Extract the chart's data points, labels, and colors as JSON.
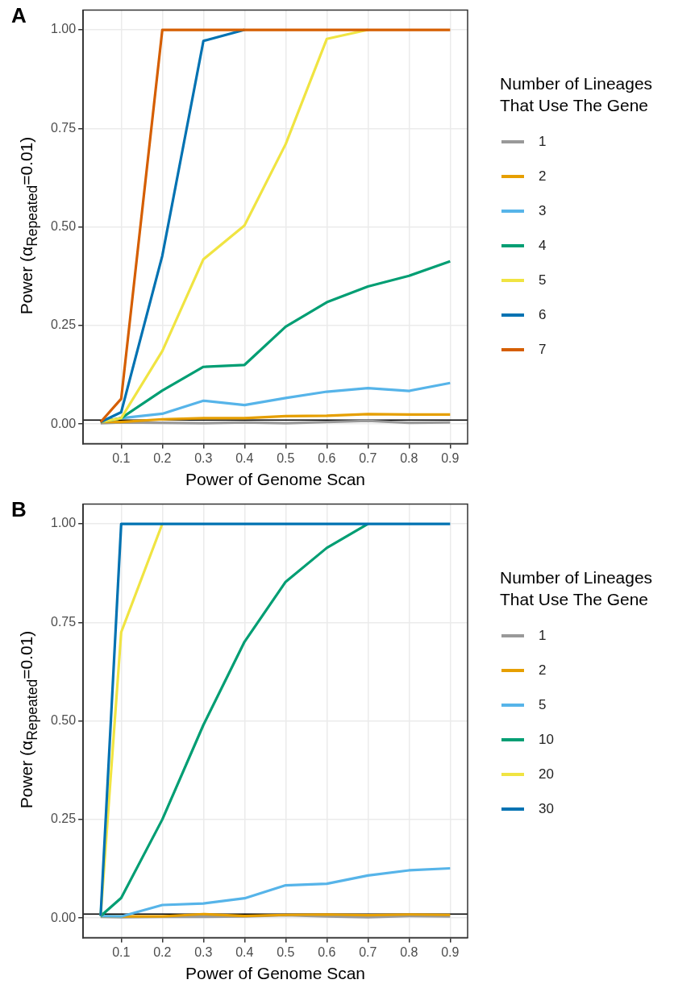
{
  "chart_data": [
    {
      "type": "line",
      "annotations": [
        "A"
      ],
      "xlabel": "Power of Genome Scan",
      "ylabel": "Power (α$_{Repeated}$=0.01)",
      "legend_title": "Number of Lineages That Use The Gene",
      "legend": "right",
      "grid": true,
      "marker": "none",
      "line_style": "solid",
      "x": [
        0.05,
        0.1,
        0.2,
        0.3,
        0.4,
        0.5,
        0.6,
        0.7,
        0.8,
        0.9
      ],
      "xlim": [
        0.0075,
        0.9425
      ],
      "xticks": [
        0.1,
        0.2,
        0.3,
        0.4,
        0.5,
        0.6,
        0.7,
        0.8,
        0.9
      ],
      "ylim": [
        -0.05,
        1.05
      ],
      "yticks": [
        {
          "value": 0,
          "label": "0.00"
        },
        {
          "value": 0.25,
          "label": "0.25"
        },
        {
          "value": 0.5,
          "label": "0.50"
        },
        {
          "value": 0.75,
          "label": "0.75"
        },
        {
          "value": 1,
          "label": "1.00"
        }
      ],
      "ref_lines": [
        {
          "axis": "y",
          "value": 0.01,
          "color": "#000000"
        }
      ],
      "series": [
        {
          "name": "1",
          "color": "#999999",
          "values": [
            0.002,
            0.004,
            0.003,
            0.002,
            0.004,
            0.002,
            0.005,
            0.008,
            0.003,
            0.004
          ]
        },
        {
          "name": "2",
          "color": "#e69f00",
          "values": [
            0.005,
            0.005,
            0.012,
            0.015,
            0.015,
            0.02,
            0.021,
            0.025,
            0.024,
            0.024
          ]
        },
        {
          "name": "3",
          "color": "#56b4e9",
          "values": [
            0.005,
            0.015,
            0.026,
            0.059,
            0.048,
            0.066,
            0.082,
            0.091,
            0.084,
            0.104
          ]
        },
        {
          "name": "4",
          "color": "#009e73",
          "values": [
            0.005,
            0.015,
            0.085,
            0.145,
            0.15,
            0.247,
            0.309,
            0.349,
            0.376,
            0.413
          ]
        },
        {
          "name": "5",
          "color": "#f0e442",
          "values": [
            0.005,
            0.015,
            0.185,
            0.418,
            0.504,
            0.71,
            0.977,
            1,
            null,
            null
          ]
        },
        {
          "name": "6",
          "color": "#0072b2",
          "values": [
            0.005,
            0.03,
            0.427,
            0.972,
            1,
            null,
            null,
            null,
            null,
            null
          ]
        },
        {
          "name": "7",
          "color": "#d55e00",
          "values": [
            0.005,
            0.064,
            1,
            1,
            1,
            1,
            1,
            1,
            1,
            1
          ]
        }
      ]
    },
    {
      "type": "line",
      "annotations": [
        "B"
      ],
      "xlabel": "Power of Genome Scan",
      "ylabel": "Power (α$_{Repeated}$=0.01)",
      "legend_title": "Number of Lineages That Use The Gene",
      "legend": "right",
      "grid": true,
      "marker": "none",
      "line_style": "solid",
      "x": [
        0.05,
        0.1,
        0.2,
        0.3,
        0.4,
        0.5,
        0.6,
        0.7,
        0.8,
        0.9
      ],
      "xlim": [
        0.0075,
        0.9425
      ],
      "xticks": [
        0.1,
        0.2,
        0.3,
        0.4,
        0.5,
        0.6,
        0.7,
        0.8,
        0.9
      ],
      "ylim": [
        -0.05,
        1.05
      ],
      "yticks": [
        {
          "value": 0,
          "label": "0.00"
        },
        {
          "value": 0.25,
          "label": "0.25"
        },
        {
          "value": 0.5,
          "label": "0.50"
        },
        {
          "value": 0.75,
          "label": "0.75"
        },
        {
          "value": 1,
          "label": "1.00"
        }
      ],
      "ref_lines": [
        {
          "axis": "y",
          "value": 0.01,
          "color": "#000000"
        }
      ],
      "series": [
        {
          "name": "1",
          "color": "#999999",
          "values": [
            0.003,
            0.002,
            0.003,
            0.003,
            0.004,
            0.007,
            0.004,
            0.002,
            0.005,
            0.004
          ]
        },
        {
          "name": "2",
          "color": "#e69f00",
          "values": [
            0.005,
            0.004,
            0.004,
            0.01,
            0.005,
            0.008,
            0.009,
            0.007,
            0.009,
            0.008
          ]
        },
        {
          "name": "5",
          "color": "#56b4e9",
          "values": [
            0.005,
            0.004,
            0.033,
            0.037,
            0.05,
            0.083,
            0.087,
            0.108,
            0.121,
            0.126
          ]
        },
        {
          "name": "10",
          "color": "#009e73",
          "values": [
            0.005,
            0.051,
            0.25,
            0.49,
            0.701,
            0.853,
            0.939,
            1,
            null,
            null
          ]
        },
        {
          "name": "20",
          "color": "#f0e442",
          "values": [
            0.005,
            0.725,
            1,
            null,
            null,
            null,
            null,
            null,
            null,
            null
          ]
        },
        {
          "name": "30",
          "color": "#0072b2",
          "values": [
            0.005,
            1,
            1,
            1,
            1,
            1,
            1,
            1,
            1,
            1
          ]
        }
      ]
    }
  ]
}
